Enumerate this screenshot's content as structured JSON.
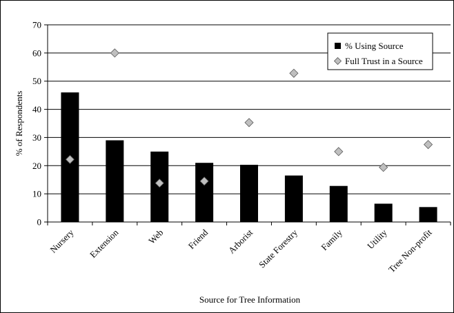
{
  "chart_data": {
    "type": "bar",
    "title": "",
    "xlabel": "Source for Tree Information",
    "ylabel": "% of Respondents",
    "ylim": [
      0,
      70
    ],
    "yticks": [
      0,
      10,
      20,
      30,
      40,
      50,
      60,
      70
    ],
    "grid": "horizontal",
    "legend_position": "top-right",
    "categories": [
      "Nursery",
      "Extension",
      "Web",
      "Friend",
      "Arborist",
      "State Forestry",
      "Family",
      "Utility",
      "Tree Non-profit"
    ],
    "series": [
      {
        "name": "% Using Source",
        "kind": "bar",
        "color": "#000000",
        "values": [
          46,
          29,
          25,
          21,
          20.3,
          16.5,
          12.8,
          6.5,
          5.3
        ]
      },
      {
        "name": "Full Trust in a Source",
        "kind": "marker",
        "color": "#bfbfbf",
        "values": [
          22.2,
          60,
          13.8,
          14.5,
          35.3,
          52.8,
          25,
          19.4,
          27.5
        ]
      }
    ]
  }
}
